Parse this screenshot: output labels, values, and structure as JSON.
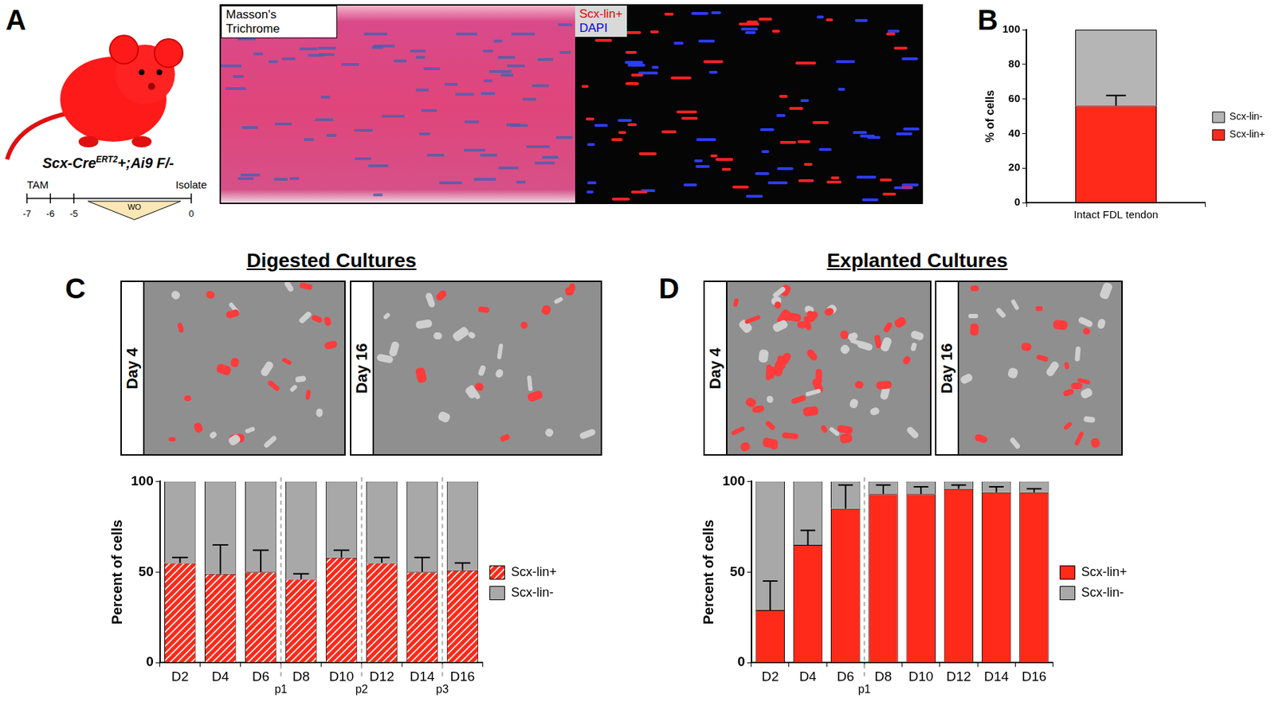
{
  "chart_data": [
    {
      "type": "bar",
      "stacked": true,
      "grid": false,
      "legend": "right",
      "categories": [
        "Intact FDL tendon"
      ],
      "ylabel": "% of cells",
      "ylim": [
        0,
        100
      ],
      "yticks": [
        0,
        20,
        40,
        60,
        80,
        100
      ],
      "series": [
        {
          "name": "Scx-lin+",
          "color": "#ff2a1a",
          "values": [
            56
          ],
          "errors": [
            6
          ]
        },
        {
          "name": "Scx-lin-",
          "color": "#b5b5b5",
          "values": [
            44
          ]
        }
      ]
    },
    {
      "type": "bar",
      "stacked": true,
      "grid": false,
      "legend": "right",
      "title": "Digested Cultures",
      "categories": [
        "D2",
        "D4",
        "D6",
        "D8",
        "D10",
        "D12",
        "D14",
        "D16"
      ],
      "ylabel": "Percent of cells",
      "ylim": [
        0,
        100
      ],
      "yticks": [
        0,
        50,
        100
      ],
      "passages": [
        {
          "after": "D6",
          "label": "p1"
        },
        {
          "after": "D10",
          "label": "p2"
        },
        {
          "after": "D14",
          "label": "p3"
        }
      ],
      "series": [
        {
          "name": "Scx-lin+",
          "color": "#ff2a1a",
          "values": [
            55,
            49,
            50,
            46,
            58,
            55,
            50,
            51
          ],
          "errors": [
            3,
            16,
            12,
            3,
            4,
            3,
            8,
            4
          ]
        },
        {
          "name": "Scx-lin-",
          "color": "#a8a8a8",
          "values": [
            45,
            51,
            50,
            54,
            42,
            45,
            50,
            49
          ]
        }
      ]
    },
    {
      "type": "bar",
      "stacked": true,
      "grid": false,
      "legend": "right",
      "title": "Explanted Cultures",
      "categories": [
        "D2",
        "D4",
        "D6",
        "D8",
        "D10",
        "D12",
        "D14",
        "D16"
      ],
      "ylabel": "Percent of cells",
      "ylim": [
        0,
        100
      ],
      "yticks": [
        0,
        50,
        100
      ],
      "passages": [
        {
          "after": "D6",
          "label": "p1"
        }
      ],
      "series": [
        {
          "name": "Scx-lin+",
          "color": "#ff2a1a",
          "values": [
            29,
            65,
            85,
            93,
            93,
            96,
            94,
            94
          ],
          "errors": [
            16,
            8,
            13,
            5,
            4,
            2,
            3,
            2
          ]
        },
        {
          "name": "Scx-lin-",
          "color": "#a8a8a8",
          "values": [
            71,
            35,
            15,
            7,
            7,
            4,
            6,
            6
          ]
        }
      ]
    }
  ],
  "figure": {
    "panel_letters": [
      "A",
      "B",
      "C",
      "D"
    ],
    "panel_a": {
      "genotype": {
        "base": "Scx-Cre",
        "superscript": "ERT2",
        "suffix": "+;Ai9 F/-"
      },
      "timeline": {
        "ticks": [
          -7,
          -6,
          -5,
          0
        ],
        "start_label": "TAM",
        "end_label": "Isolate",
        "washout": "WO"
      },
      "image_labels": {
        "trichrome": "Masson's Trichrome",
        "fluorescence": [
          "Scx-lin+",
          "DAPI"
        ]
      }
    },
    "culture_images": [
      [
        "Day 4",
        "Day 16"
      ],
      [
        "Day 4",
        "Day 16"
      ]
    ]
  }
}
